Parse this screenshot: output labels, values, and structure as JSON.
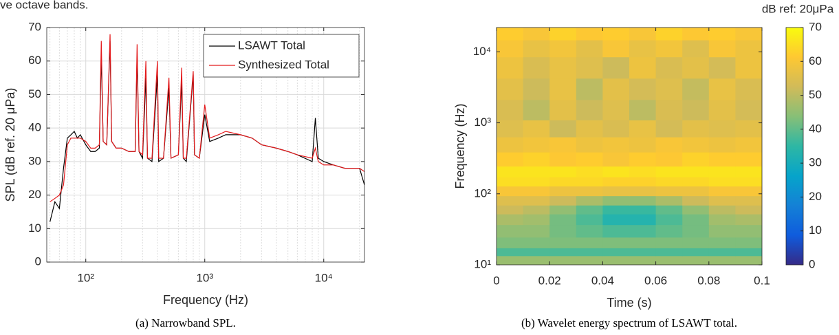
{
  "fragment_text": "ve octave bands.",
  "chart_data": [
    {
      "type": "line",
      "caption": "(a) Narrowband SPL.",
      "x_label": "Frequency (Hz)",
      "y_label": "SPL (dB ref. 20 μPa)",
      "xscale": "log",
      "grid": true,
      "minor_grid": true,
      "legend": "upper right",
      "xlim": [
        47,
        22000
      ],
      "ylim": [
        0,
        70
      ],
      "xticks": [
        {
          "value": 100,
          "label": "10²"
        },
        {
          "value": 1000,
          "label": "10³"
        },
        {
          "value": 10000,
          "label": "10⁴"
        }
      ],
      "yticks": [
        0,
        10,
        20,
        30,
        40,
        50,
        60,
        70
      ],
      "x": [
        50,
        55,
        60,
        65,
        70,
        75,
        80,
        85,
        90,
        100,
        110,
        120,
        130,
        135,
        140,
        150,
        160,
        165,
        180,
        200,
        230,
        260,
        270,
        280,
        300,
        320,
        330,
        360,
        400,
        410,
        450,
        500,
        520,
        600,
        640,
        660,
        700,
        800,
        820,
        900,
        1000,
        1100,
        1300,
        1500,
        2000,
        2500,
        3000,
        4000,
        5000,
        6000,
        8000,
        8500,
        9000,
        10000,
        12000,
        15000,
        20000,
        22000
      ],
      "series": [
        {
          "name": "LSAWT Total",
          "color": "#000000",
          "values": [
            12,
            18,
            16,
            28,
            37,
            38,
            39,
            37,
            38,
            35,
            33,
            33,
            34,
            62,
            36,
            35,
            66,
            36,
            34,
            34,
            33,
            33,
            62,
            33,
            31,
            55,
            31,
            30,
            56,
            30,
            31,
            52,
            31,
            32,
            54,
            31,
            30,
            56,
            32,
            31,
            44,
            36,
            37,
            38,
            38,
            37,
            35,
            34,
            33,
            32,
            30,
            43,
            31,
            30,
            29,
            28,
            28,
            23
          ]
        },
        {
          "name": "Synthesized Total",
          "color": "#e41a1c",
          "values": [
            18,
            19,
            20,
            23,
            35,
            37,
            37,
            37,
            37,
            36,
            34,
            34,
            35,
            66,
            36,
            35,
            68,
            36,
            34,
            34,
            33,
            33,
            65,
            33,
            32,
            60,
            31,
            31,
            60,
            31,
            31,
            55,
            31,
            32,
            58,
            31,
            31,
            57,
            32,
            31,
            47,
            37,
            38,
            39,
            38,
            37,
            35,
            34,
            33,
            32,
            31,
            34,
            30,
            29,
            29,
            28,
            28,
            27
          ]
        }
      ]
    },
    {
      "type": "heatmap",
      "caption": "(b) Wavelet energy spectrum of LSAWT total.",
      "x_label": "Time (s)",
      "y_label": "Frequency (Hz)",
      "yscale": "log",
      "colorbar_label": "dB ref: 20μPa",
      "xlim": [
        0,
        0.1
      ],
      "ylim": [
        10,
        22000
      ],
      "xticks": [
        0,
        0.02,
        0.04,
        0.06,
        0.08,
        0.1
      ],
      "yticks": [
        {
          "value": 10,
          "label": "10¹"
        },
        {
          "value": 100,
          "label": "10²"
        },
        {
          "value": 1000,
          "label": "10³"
        },
        {
          "value": 10000,
          "label": "10⁴"
        }
      ],
      "clim": [
        0,
        70
      ],
      "cticks": [
        0,
        10,
        20,
        30,
        40,
        50,
        60,
        70
      ],
      "colormap": [
        "#352a87",
        "#0f5cdd",
        "#1481d6",
        "#06a4ca",
        "#2eb7a4",
        "#87bf77",
        "#d1bb59",
        "#fec832",
        "#f9fb0e"
      ],
      "x": [
        0.005,
        0.015,
        0.025,
        0.035,
        0.045,
        0.055,
        0.065,
        0.075,
        0.085,
        0.095
      ],
      "y": [
        12,
        15,
        20,
        30,
        45,
        60,
        80,
        110,
        150,
        200,
        300,
        500,
        800,
        1500,
        3000,
        6000,
        12000,
        18000
      ],
      "z": [
        [
          46,
          46,
          46,
          46,
          46,
          46,
          46,
          46,
          46,
          46
        ],
        [
          38,
          38,
          38,
          38,
          38,
          38,
          38,
          38,
          38,
          38
        ],
        [
          43,
          43,
          43,
          43,
          43,
          43,
          43,
          43,
          43,
          43
        ],
        [
          45,
          45,
          42,
          40,
          38,
          38,
          40,
          42,
          45,
          45
        ],
        [
          48,
          47,
          42,
          38,
          33,
          33,
          38,
          42,
          47,
          48
        ],
        [
          52,
          50,
          45,
          40,
          36,
          36,
          40,
          45,
          50,
          52
        ],
        [
          55,
          55,
          52,
          48,
          45,
          45,
          48,
          52,
          55,
          55
        ],
        [
          60,
          60,
          58,
          58,
          57,
          57,
          58,
          58,
          60,
          60
        ],
        [
          65,
          65,
          64,
          64,
          63,
          63,
          64,
          64,
          65,
          65
        ],
        [
          66,
          66,
          66,
          65,
          66,
          65,
          66,
          66,
          66,
          66
        ],
        [
          62,
          63,
          61,
          62,
          60,
          62,
          61,
          63,
          62,
          62
        ],
        [
          58,
          59,
          60,
          58,
          59,
          58,
          60,
          59,
          58,
          59
        ],
        [
          55,
          57,
          52,
          56,
          54,
          57,
          53,
          56,
          55,
          56
        ],
        [
          54,
          50,
          56,
          52,
          55,
          50,
          54,
          52,
          56,
          53
        ],
        [
          56,
          52,
          57,
          50,
          56,
          53,
          55,
          51,
          57,
          54
        ],
        [
          58,
          54,
          57,
          55,
          52,
          58,
          54,
          56,
          53,
          58
        ],
        [
          60,
          57,
          59,
          56,
          60,
          57,
          59,
          55,
          60,
          58
        ],
        [
          62,
          60,
          63,
          61,
          62,
          60,
          63,
          61,
          62,
          60
        ]
      ]
    }
  ]
}
